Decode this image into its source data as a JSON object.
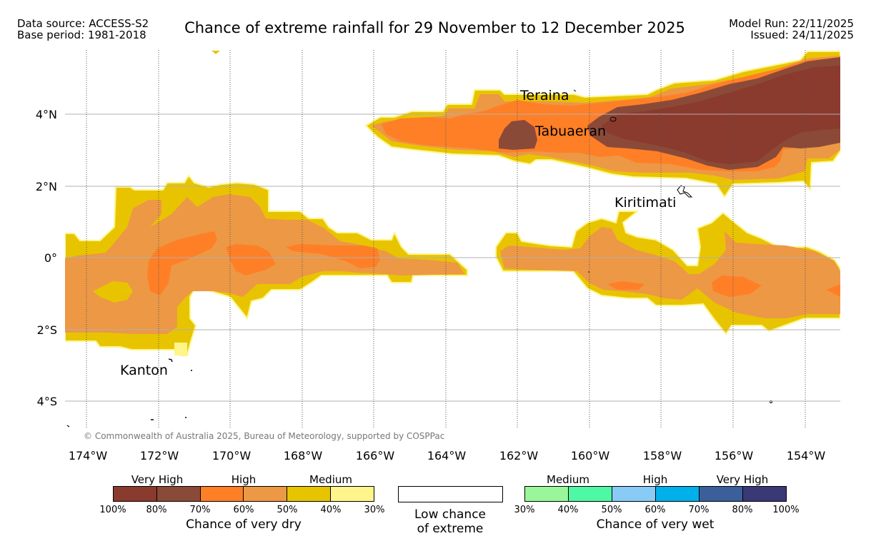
{
  "header": {
    "data_source": "Data source: ACCESS-S2",
    "base_period": "Base period: 1981-2018",
    "title": "Chance of extreme rainfall for 29 November to 12 December 2025",
    "model_run": "Model Run: 22/11/2025",
    "issued": "Issued: 24/11/2025"
  },
  "map": {
    "lon_ticks": [
      "174°W",
      "172°W",
      "170°W",
      "168°W",
      "166°W",
      "164°W",
      "162°W",
      "160°W",
      "158°W",
      "156°W",
      "154°W"
    ],
    "lat_ticks": [
      "4°N",
      "2°N",
      "0°",
      "2°S",
      "4°S"
    ],
    "places": [
      "Teraina",
      "Tabuaeran",
      "Kiritimati",
      "Kanton"
    ],
    "copyright": "© Commonwealth of Australia 2025, Bureau of Meteorology, supported by COSPPac"
  },
  "legend": {
    "dry": {
      "groups": [
        "Very High",
        "High",
        "Medium"
      ],
      "ticks": [
        "100%",
        "80%",
        "70%",
        "60%",
        "50%",
        "40%",
        "30%"
      ],
      "caption": "Chance of very dry",
      "colors": [
        "#8b3a2e",
        "#8b4a38",
        "#ff7f27",
        "#ed9845",
        "#e8c400",
        "#fff58a"
      ]
    },
    "low": {
      "line1": "Low chance",
      "line2": "of extreme"
    },
    "wet": {
      "groups": [
        "Medium",
        "High",
        "Very High"
      ],
      "ticks": [
        "30%",
        "40%",
        "50%",
        "60%",
        "70%",
        "80%",
        "100%"
      ],
      "caption": "Chance of very wet",
      "colors": [
        "#99f79a",
        "#4ff8a4",
        "#87cbf6",
        "#00b0ea",
        "#3b5f9b",
        "#3b3878"
      ]
    }
  }
}
